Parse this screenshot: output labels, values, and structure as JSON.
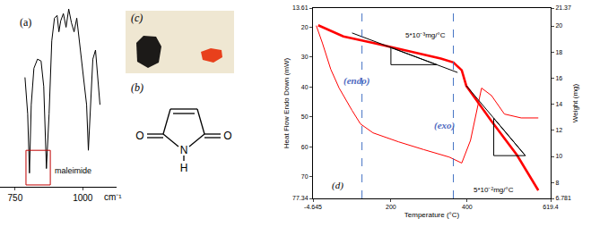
{
  "chart_data": [
    {
      "type": "line",
      "label": "(a)",
      "x_label": "cm⁻¹",
      "xlim": [
        694,
        1125
      ],
      "xticks": [
        750,
        1000
      ],
      "ylim": [
        0,
        100
      ],
      "tick_labels": "x",
      "series": [
        {
          "color": "#000000",
          "line_style": "solid",
          "x": [
            786.4,
            796.3,
            802.9,
            809.5,
            819.4,
            832.6,
            845.8,
            855.7,
            865.6,
            875.5,
            885.4,
            895.3,
            905.2,
            911.8,
            918.4,
            928.3,
            938.2,
            948.1,
            958,
            967.9,
            977.8,
            987.7,
            997.6,
            1007.5,
            1014.1,
            1020.7,
            1027.3,
            1037.2,
            1047.1,
            1057,
            1063.6
          ],
          "values": [
            60,
            40,
            7.5,
            45,
            65,
            70,
            69,
            55,
            10,
            40,
            80,
            92.5,
            94,
            85,
            91,
            95,
            87.5,
            97.5,
            90,
            85,
            92.5,
            80,
            65,
            55,
            45,
            20,
            40,
            70,
            75,
            55,
            45
          ]
        }
      ],
      "box": {
        "x": [
          790,
          880
        ],
        "y": [
          1,
          20
        ],
        "color": "#c00000"
      },
      "annotations": [
        {
          "text": "maleimide",
          "x": 888,
          "y": 9
        }
      ]
    },
    {
      "type": "line",
      "label": "(d)",
      "x_label": "Temperature (°C)",
      "y_label": "Heat Flow Endo Down (mW)",
      "y2_label": "Weight (mg)",
      "xlim": [
        -4.645,
        619.4
      ],
      "xticks": [
        -4.645,
        200,
        400,
        619.4
      ],
      "ylim": [
        77.34,
        13.61
      ],
      "yticks": [
        13.61,
        20,
        30,
        40,
        50,
        60,
        70,
        77.34
      ],
      "y2lim": [
        6.781,
        21.37
      ],
      "y2ticks": [
        6.781,
        8,
        10,
        12,
        14,
        16,
        18,
        20,
        21.37
      ],
      "series": [
        {
          "axis": "y",
          "color": "#ff0000",
          "line_style": "solid",
          "x": [
            4,
            20,
            42,
            64,
            98,
            120,
            153,
            220,
            286,
            353,
            386,
            409,
            438,
            464,
            498,
            542,
            587
          ],
          "values": [
            19.5,
            25.3,
            34.1,
            40.4,
            47.9,
            52.4,
            55.4,
            58.4,
            61.0,
            63.5,
            65.5,
            57.9,
            40.4,
            42.9,
            49.1,
            50.4,
            50.4
          ]
        },
        {
          "axis": "y2",
          "color": "#ff0000",
          "line_style": "bold",
          "x": [
            9,
            42,
            75,
            153,
            242,
            331,
            364,
            386,
            398,
            464,
            531,
            587
          ],
          "values": [
            20.05,
            19.6,
            19.2,
            18.7,
            18.1,
            17.5,
            17.2,
            16.6,
            15.4,
            12.7,
            10.1,
            7.4
          ]
        },
        {
          "axis": "y2",
          "color": "#000000",
          "line_style": "solid",
          "x": [
            98,
            375
          ],
          "values": [
            19.46,
            16.43
          ]
        },
        {
          "axis": "y2",
          "color": "#000000",
          "line_style": "solid",
          "x": [
            398,
            553
          ],
          "values": [
            15.42,
            10.06
          ]
        },
        {
          "axis": "y2",
          "color": "#000000",
          "line_style": "solid",
          "x": [
            200,
            320,
            200,
            200
          ],
          "values": [
            18.34,
            17.03,
            17.03,
            18.34
          ]
        },
        {
          "axis": "y2",
          "color": "#000000",
          "line_style": "solid",
          "x": [
            470,
            553,
            470,
            470
          ],
          "values": [
            12.93,
            10.06,
            10.06,
            12.93
          ]
        }
      ],
      "vlines": [
        124,
        364
      ],
      "vline_color": "#4472c4",
      "annotations": [
        {
          "text": "(endo)",
          "x": 110,
          "y": 38,
          "axis": "y",
          "color": "#4f6bbf"
        },
        {
          "text": "(exo)",
          "x": 340,
          "y": 53,
          "axis": "y",
          "color": "#4f6bbf"
        },
        {
          "text": "5*10⁻³mg/°C",
          "x": 290,
          "y": 19.3,
          "axis": "y2"
        },
        {
          "text": "5*10⁻²mg/°C",
          "x": 470,
          "y": 7.4,
          "axis": "y2"
        }
      ]
    }
  ],
  "structure": {
    "label": "(b)",
    "atoms": [
      "O",
      "O",
      "N",
      "H"
    ]
  },
  "photo": {
    "label": "(c)"
  }
}
